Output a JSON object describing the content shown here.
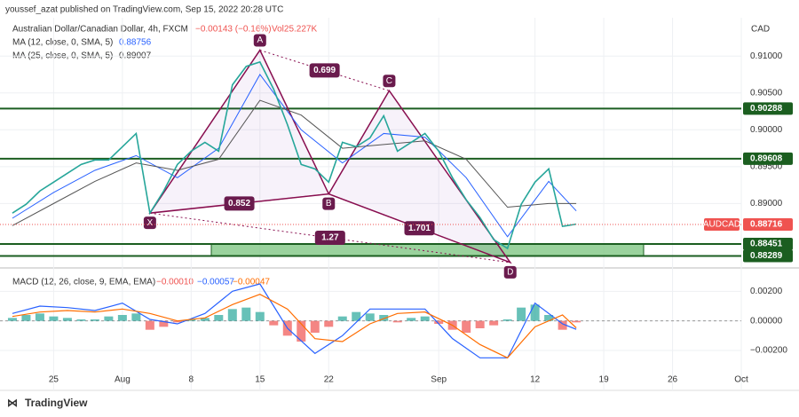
{
  "header": {
    "publisher": "youssef_azat published on TradingView.com, Sep 15, 2022 20:28 UTC",
    "symbol_name": "Australian Dollar/Canadian Dollar, 4h, FXCM",
    "change": "−0.00143 (−0.16%)",
    "volume": "Vol25.227K",
    "ma1_label": "MA (12, close, 0, SMA, 5)",
    "ma1_value": "0.88756",
    "ma2_label": "MA (25, close, 0, SMA, 5)",
    "ma2_value": "0.89007",
    "currency": "CAD",
    "footer": "TradingView"
  },
  "chart_data": [
    {
      "type": "line",
      "xlim": [
        -3.9,
        50
      ],
      "ylim": [
        0.8815,
        0.9152
      ],
      "xticks": [
        {
          "value": 0,
          "label": "25"
        },
        {
          "value": 5,
          "label": "Aug"
        },
        {
          "value": 10,
          "label": "8"
        },
        {
          "value": 15,
          "label": "15"
        },
        {
          "value": 20,
          "label": "22"
        },
        {
          "value": 28,
          "label": "Sep"
        },
        {
          "value": 35,
          "label": "12"
        },
        {
          "value": 40,
          "label": "19"
        },
        {
          "value": 45,
          "label": "26"
        },
        {
          "value": 50,
          "label": "Oct"
        }
      ],
      "yticks": [
        {
          "value": 0.91,
          "label": "0.91000"
        },
        {
          "value": 0.905,
          "label": "0.90500"
        },
        {
          "value": 0.9,
          "label": "0.90000"
        },
        {
          "value": 0.895,
          "label": "0.89500"
        },
        {
          "value": 0.89,
          "label": "0.89000"
        }
      ],
      "grid": true,
      "x": [
        -3,
        -2,
        -1,
        0,
        1,
        2,
        3,
        4,
        5,
        6,
        7,
        8,
        9,
        10,
        11,
        12,
        13,
        14,
        15,
        16,
        17,
        18,
        19,
        20,
        21,
        22,
        23,
        24,
        25,
        26,
        27,
        28,
        29,
        30,
        31,
        32,
        33,
        34,
        35,
        36,
        37,
        38
      ],
      "series": [
        {
          "name": "AUDCAD",
          "color": "#26a69a",
          "values": [
            0.8887,
            0.8899,
            0.8917,
            0.8929,
            0.8941,
            0.8953,
            0.8959,
            0.8959,
            0.8977,
            0.8995,
            0.8887,
            0.8917,
            0.8953,
            0.8971,
            0.8983,
            0.8971,
            0.9061,
            0.9086,
            0.9092,
            0.9055,
            0.9007,
            0.8953,
            0.8947,
            0.8929,
            0.8983,
            0.8977,
            0.8989,
            0.9019,
            0.8971,
            0.8983,
            0.8995,
            0.8971,
            0.8935,
            0.8905,
            0.8881,
            0.8851,
            0.8839,
            0.8899,
            0.8929,
            0.8947,
            0.8869,
            0.8872
          ]
        }
      ],
      "ma": [
        {
          "name": "MA (12, close, 0, SMA, 5)",
          "color": "#2962ff",
          "x": [
            -3,
            0,
            3,
            6,
            9,
            12,
            15,
            18,
            21,
            24,
            27,
            30,
            33,
            36,
            38
          ],
          "values": [
            0.888,
            0.8915,
            0.8945,
            0.8965,
            0.8935,
            0.8975,
            0.9075,
            0.9,
            0.8955,
            0.8995,
            0.899,
            0.8935,
            0.8855,
            0.893,
            0.889
          ]
        },
        {
          "name": "MA (25, close, 0, SMA, 5)",
          "color": "#555555",
          "x": [
            -3,
            0,
            3,
            6,
            9,
            12,
            15,
            18,
            21,
            24,
            27,
            30,
            33,
            36,
            38
          ],
          "values": [
            0.887,
            0.89,
            0.893,
            0.8955,
            0.8945,
            0.896,
            0.904,
            0.902,
            0.8975,
            0.898,
            0.8985,
            0.896,
            0.8895,
            0.89,
            0.89
          ]
        }
      ],
      "levels": [
        0.90288,
        0.89608,
        0.88451,
        0.88289
      ],
      "last": 0.88716,
      "symbol": "AUDCAD",
      "pattern": {
        "points": [
          {
            "label": "X",
            "x": 7,
            "y": 0.8887
          },
          {
            "label": "A",
            "x": 15,
            "y": 0.9108
          },
          {
            "label": "B",
            "x": 20,
            "y": 0.8913
          },
          {
            "label": "C",
            "x": 24.4,
            "y": 0.9053
          },
          {
            "label": "D",
            "x": 33.2,
            "y": 0.882
          }
        ],
        "ratio_labels": [
          "0.852",
          "0.699",
          "1.701",
          "1.27"
        ]
      }
    },
    {
      "type": "macd",
      "title": "MACD (12, 26, close, 9, EMA, EMA)",
      "readouts": [
        "−0.00010",
        "−0.00057",
        "−0.00047"
      ],
      "ylim": [
        -0.0032,
        0.0034
      ],
      "yticks": [
        {
          "value": 0.002,
          "label": "0.00200"
        },
        {
          "value": 0,
          "label": "0.00000"
        },
        {
          "value": -0.002,
          "label": "−0.00200"
        }
      ],
      "x": [
        -3,
        -2,
        -1,
        0,
        1,
        2,
        3,
        4,
        5,
        6,
        7,
        8,
        9,
        10,
        11,
        12,
        13,
        14,
        15,
        16,
        17,
        18,
        19,
        20,
        21,
        22,
        23,
        24,
        25,
        26,
        27,
        28,
        29,
        30,
        31,
        32,
        33,
        34,
        35,
        36,
        37,
        38
      ],
      "histogram": [
        0.0002,
        0.0004,
        0.0005,
        0.0003,
        0.0002,
        0.0001,
        0.0001,
        0.0003,
        0.0004,
        0.0005,
        -0.0006,
        -0.0004,
        -0.0001,
        0.0001,
        0.0002,
        0.0004,
        0.0008,
        0.0009,
        0.0006,
        -0.0003,
        -0.001,
        -0.0014,
        -0.0008,
        -0.0004,
        0.0003,
        0.0006,
        0.0005,
        0.0004,
        -0.0001,
        0.0002,
        0.0003,
        -0.0002,
        -0.0006,
        -0.0008,
        -0.0005,
        -0.0003,
        0.0001,
        0.0009,
        0.0011,
        0.0004,
        -0.0006,
        -0.0001
      ],
      "lines": [
        {
          "name": "MACD",
          "color": "#2962ff",
          "x": [
            -3,
            -1,
            1,
            3,
            5,
            7,
            9,
            11,
            13,
            15,
            17,
            19,
            21,
            23,
            25,
            27,
            29,
            31,
            33,
            35,
            37,
            38
          ],
          "values": [
            0.0005,
            0.001,
            0.0009,
            0.0007,
            0.0012,
            0.0001,
            -0.0002,
            0.0005,
            0.002,
            0.0025,
            -0.0005,
            -0.0022,
            -0.001,
            0.0008,
            0.0008,
            0.0008,
            -0.0012,
            -0.0025,
            -0.0025,
            0.0012,
            -0.0002,
            -0.00057
          ]
        },
        {
          "name": "Signal",
          "color": "#ff6d00",
          "x": [
            -3,
            -1,
            1,
            3,
            5,
            7,
            9,
            11,
            13,
            15,
            17,
            19,
            21,
            23,
            25,
            27,
            29,
            31,
            33,
            35,
            37,
            38
          ],
          "values": [
            0.0003,
            0.0006,
            0.0007,
            0.0006,
            0.0008,
            0.0005,
            0,
            0.0002,
            0.0011,
            0.0018,
            0.0008,
            -0.0012,
            -0.0014,
            -0.0002,
            0.0005,
            0.0006,
            -0.0003,
            -0.0016,
            -0.0025,
            -0.0004,
            0.0004,
            -0.00047
          ]
        }
      ]
    }
  ]
}
